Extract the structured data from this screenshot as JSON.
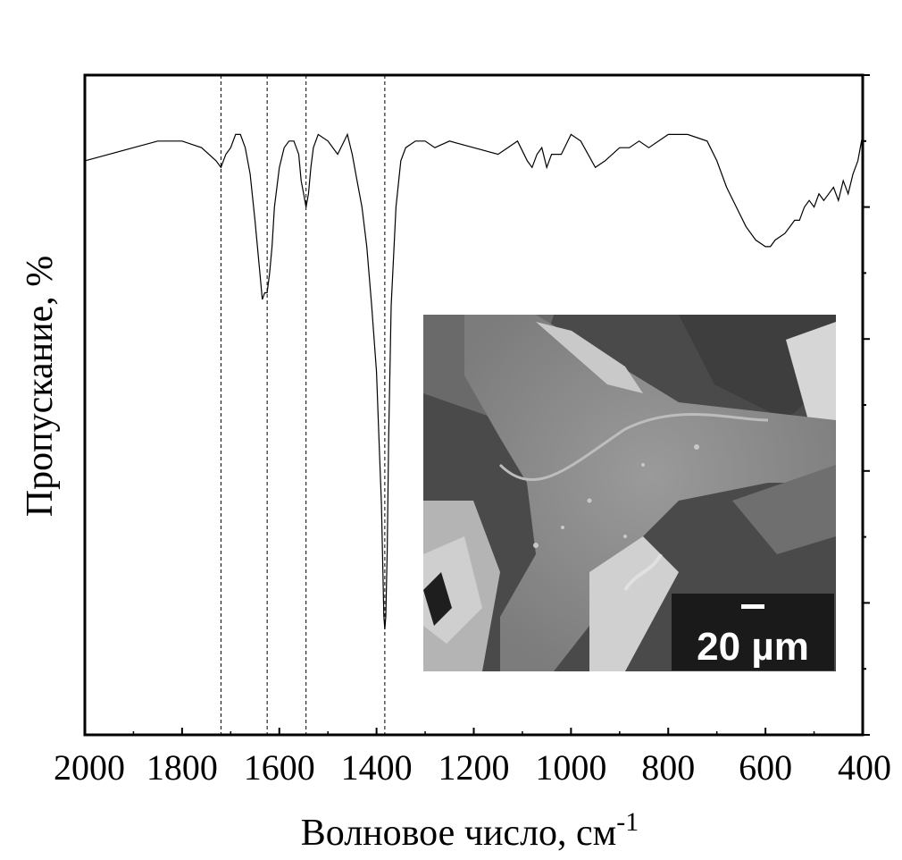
{
  "chart_data": {
    "type": "line",
    "xlabel": "Волновое число, см",
    "xlabel_sup": "-1",
    "ylabel": "Пропускание, %",
    "xlim": [
      2000,
      400
    ],
    "x_reversed": true,
    "x_ticks": [
      2000,
      1800,
      1600,
      1400,
      1200,
      1000,
      800,
      600,
      400
    ],
    "x_tick_labels": [
      "2000",
      "1800",
      "1600",
      "1400",
      "1200",
      "1000",
      "800",
      "600",
      "400"
    ],
    "ylim": [
      0,
      100
    ],
    "y_tick_labels_shown": false,
    "grid": false,
    "reference_lines_x": [
      1720,
      1625,
      1545,
      1383
    ],
    "series": [
      {
        "x": [
          2000,
          1950,
          1900,
          1850,
          1800,
          1760,
          1730,
          1720,
          1710,
          1700,
          1690,
          1680,
          1670,
          1660,
          1650,
          1640,
          1635,
          1630,
          1625,
          1620,
          1615,
          1610,
          1600,
          1590,
          1580,
          1570,
          1560,
          1555,
          1550,
          1545,
          1540,
          1535,
          1530,
          1520,
          1500,
          1480,
          1460,
          1450,
          1440,
          1430,
          1420,
          1410,
          1400,
          1395,
          1390,
          1387,
          1385,
          1383,
          1381,
          1378,
          1375,
          1370,
          1360,
          1350,
          1340,
          1320,
          1300,
          1280,
          1250,
          1200,
          1150,
          1130,
          1110,
          1090,
          1080,
          1070,
          1060,
          1050,
          1040,
          1020,
          1000,
          980,
          950,
          930,
          900,
          880,
          860,
          840,
          800,
          760,
          720,
          700,
          680,
          660,
          640,
          620,
          600,
          590,
          580,
          560,
          540,
          530,
          520,
          510,
          500,
          490,
          480,
          470,
          460,
          450,
          440,
          430,
          420,
          410,
          400
        ],
        "values": [
          87,
          88,
          89,
          90,
          90,
          89,
          87,
          86,
          88,
          89,
          91,
          91,
          89,
          85,
          78,
          70,
          66,
          67,
          67,
          70,
          74,
          80,
          86,
          89,
          90,
          90,
          88,
          84,
          82,
          80,
          82,
          86,
          89,
          91,
          90,
          88,
          91,
          88,
          84,
          80,
          74,
          65,
          55,
          45,
          35,
          25,
          18,
          16,
          18,
          28,
          45,
          65,
          80,
          87,
          89,
          90,
          90,
          89,
          90,
          89,
          88,
          89,
          90,
          87,
          86,
          88,
          89,
          86,
          88,
          88,
          91,
          90,
          86,
          87,
          89,
          89,
          90,
          89,
          91,
          91,
          90,
          87,
          83,
          80,
          77,
          75,
          74,
          74,
          75,
          76,
          78,
          78,
          80,
          81,
          80,
          82,
          81,
          82,
          83,
          81,
          84,
          82,
          85,
          87,
          91
        ]
      }
    ]
  },
  "inset": {
    "scale_bar_label": "20 µm"
  }
}
